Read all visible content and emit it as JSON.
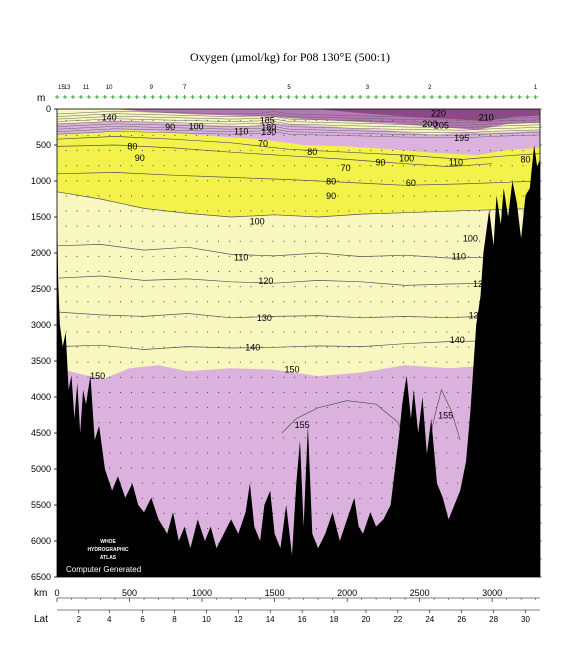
{
  "chart_data": {
    "type": "heatmap",
    "title": "Oxygen (µmol/kg) for P08 130°E (500:1)",
    "ylabel": "m",
    "xlabel": "km",
    "x2label": "Lat",
    "xlim": [
      0,
      3330
    ],
    "ylim": [
      6500,
      0
    ],
    "y_ticks": [
      0,
      500,
      1000,
      1500,
      2000,
      2500,
      3000,
      3500,
      4000,
      4500,
      5000,
      5500,
      6000,
      6500
    ],
    "x_ticks": [
      0,
      500,
      1000,
      1500,
      2000,
      2500,
      3000
    ],
    "lat_ticks": [
      {
        "label": "2",
        "km": 150
      },
      {
        "label": "4",
        "km": 360
      },
      {
        "label": "6",
        "km": 590
      },
      {
        "label": "8",
        "km": 810
      },
      {
        "label": "10",
        "km": 1030
      },
      {
        "label": "12",
        "km": 1250
      },
      {
        "label": "14",
        "km": 1470
      },
      {
        "label": "16",
        "km": 1690
      },
      {
        "label": "18",
        "km": 1910
      },
      {
        "label": "20",
        "km": 2130
      },
      {
        "label": "22",
        "km": 2350
      },
      {
        "label": "24",
        "km": 2570
      },
      {
        "label": "26",
        "km": 2790
      },
      {
        "label": "28",
        "km": 3010
      },
      {
        "label": "30",
        "km": 3230
      }
    ],
    "station_labels": [
      {
        "label": "15",
        "km": 30
      },
      {
        "label": "13",
        "km": 70
      },
      {
        "label": "11",
        "km": 200
      },
      {
        "label": "10",
        "km": 360
      },
      {
        "label": "9",
        "km": 650
      },
      {
        "label": "7",
        "km": 880
      },
      {
        "label": "5",
        "km": 1600
      },
      {
        "label": "3",
        "km": 2140
      },
      {
        "label": "2",
        "km": 2570
      },
      {
        "label": "1",
        "km": 3300
      }
    ],
    "color_bands": [
      {
        "range": "< 100",
        "color": "#f2f24a"
      },
      {
        "range": "100-150",
        "color": "#f7f7bf"
      },
      {
        "range": "> 150",
        "color": "#dbb2dd"
      },
      {
        "range": "> 190",
        "color": "#b777b5"
      },
      {
        "range": "> 210",
        "color": "#8c4888"
      }
    ],
    "contour_labels": [
      {
        "text": "140",
        "km": 360,
        "depth": 120
      },
      {
        "text": "90",
        "km": 780,
        "depth": 250
      },
      {
        "text": "100",
        "km": 960,
        "depth": 240
      },
      {
        "text": "110",
        "km": 1270,
        "depth": 310
      },
      {
        "text": "185",
        "km": 1450,
        "depth": 160
      },
      {
        "text": "180",
        "km": 1460,
        "depth": 260
      },
      {
        "text": "130",
        "km": 1460,
        "depth": 320
      },
      {
        "text": "70",
        "km": 1420,
        "depth": 480
      },
      {
        "text": "80",
        "km": 520,
        "depth": 520
      },
      {
        "text": "90",
        "km": 570,
        "depth": 680
      },
      {
        "text": "80",
        "km": 1760,
        "depth": 600
      },
      {
        "text": "70",
        "km": 1990,
        "depth": 820
      },
      {
        "text": "90",
        "km": 2230,
        "depth": 740
      },
      {
        "text": "100",
        "km": 2410,
        "depth": 690
      },
      {
        "text": "60",
        "km": 2440,
        "depth": 1030
      },
      {
        "text": "80",
        "km": 1890,
        "depth": 1010
      },
      {
        "text": "90",
        "km": 1890,
        "depth": 1210
      },
      {
        "text": "110",
        "km": 2750,
        "depth": 740
      },
      {
        "text": "195",
        "km": 2790,
        "depth": 400
      },
      {
        "text": "200",
        "km": 2570,
        "depth": 210
      },
      {
        "text": "205",
        "km": 2650,
        "depth": 230
      },
      {
        "text": "220",
        "km": 2630,
        "depth": 60
      },
      {
        "text": "210",
        "km": 2960,
        "depth": 120
      },
      {
        "text": "80",
        "km": 3230,
        "depth": 700
      },
      {
        "text": "100",
        "km": 1380,
        "depth": 1560
      },
      {
        "text": "100",
        "km": 2850,
        "depth": 1800
      },
      {
        "text": "110",
        "km": 1270,
        "depth": 2060
      },
      {
        "text": "110",
        "km": 2770,
        "depth": 2050
      },
      {
        "text": "120",
        "km": 1440,
        "depth": 2390
      },
      {
        "text": "120",
        "km": 2920,
        "depth": 2430
      },
      {
        "text": "130",
        "km": 1430,
        "depth": 2900
      },
      {
        "text": "130",
        "km": 2890,
        "depth": 2870
      },
      {
        "text": "140",
        "km": 1350,
        "depth": 3310
      },
      {
        "text": "140",
        "km": 2760,
        "depth": 3210
      },
      {
        "text": "150",
        "km": 280,
        "depth": 3710
      },
      {
        "text": "150",
        "km": 1620,
        "depth": 3620
      },
      {
        "text": "155",
        "km": 1690,
        "depth": 4390
      },
      {
        "text": "155",
        "km": 2680,
        "depth": 4260
      }
    ]
  },
  "logo": {
    "line1": "WHOE",
    "line2": "HYDROGRAPHIC",
    "line3": "ATLAS",
    "credit": "Computer Generated"
  }
}
